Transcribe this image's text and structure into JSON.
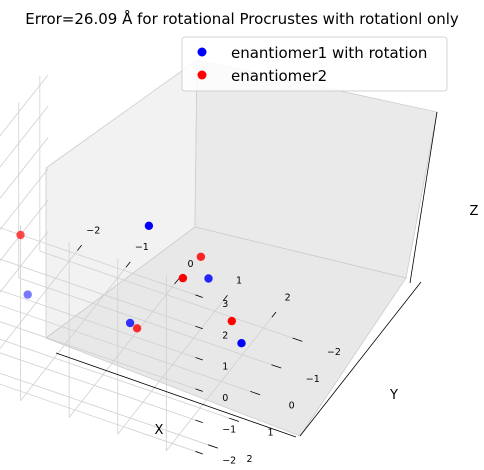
{
  "chart_data": {
    "type": "scatter",
    "title": "Error=26.09 Å for rotational Procrustes with rotationl only",
    "xlabel": "X",
    "ylabel": "Y",
    "zlabel": "Z",
    "xticks": [
      "−2",
      "−1",
      "0",
      "1",
      "2"
    ],
    "yticks": [
      "−2",
      "−1",
      "0",
      "1",
      "2"
    ],
    "zticks": [
      "−2",
      "−1",
      "0",
      "1",
      "2",
      "3"
    ],
    "xlim": [
      -2.6,
      2.6
    ],
    "ylim": [
      -2.4,
      2.6
    ],
    "zlim": [
      -2.3,
      3.3
    ],
    "grid": true,
    "legend_position": "top-right",
    "series": [
      {
        "name": "enantiomer1 with rotation",
        "color": "#0000ff",
        "points": [
          {
            "x": -1.2,
            "y": 1.8,
            "z": 0.3
          },
          {
            "x": 2.0,
            "y": 0.6,
            "z": 1.5
          },
          {
            "x": 0.3,
            "y": 0.4,
            "z": -1.0
          },
          {
            "x": 2.2,
            "y": -0.5,
            "z": -1.4
          },
          {
            "x": -0.4,
            "y": -2.1,
            "z": -0.4
          }
        ]
      },
      {
        "name": "enantiomer2",
        "color": "#ff0000",
        "points": [
          {
            "x": -2.0,
            "y": 0.3,
            "z": 0.5
          },
          {
            "x": 1.8,
            "y": 0.5,
            "z": 2.0
          },
          {
            "x": 0.4,
            "y": 0.3,
            "z": -1.2
          },
          {
            "x": 2.0,
            "y": -0.5,
            "z": -0.8
          },
          {
            "x": 0.3,
            "y": -2.1,
            "z": -1.7
          }
        ]
      }
    ]
  }
}
